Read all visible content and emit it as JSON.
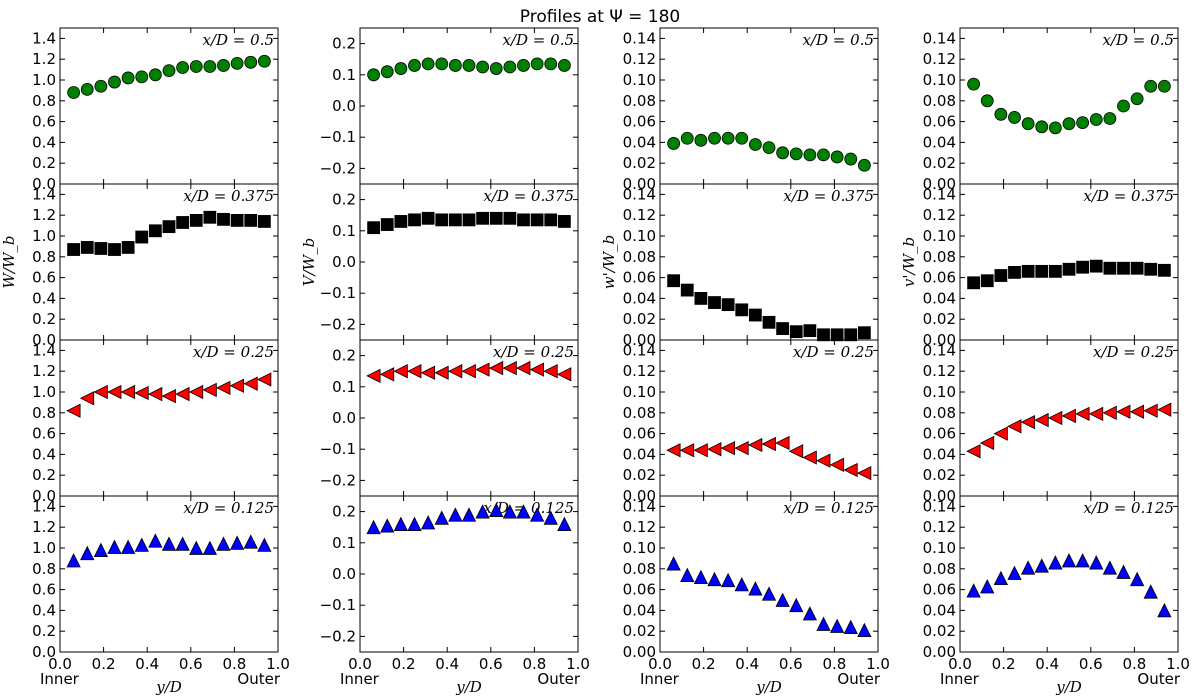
{
  "title": "Profiles at Ψ = 180",
  "chart_data": {
    "type": "scatter",
    "title": "Profiles at Ψ = 180",
    "xlabel": "y/D",
    "xlim": [
      0,
      1
    ],
    "xticks": [
      "0.0",
      "0.2",
      "0.4",
      "0.6",
      "0.8",
      "1.0"
    ],
    "x_end_labels": [
      "Inner",
      "Outer"
    ],
    "x": [
      0.0625,
      0.125,
      0.1875,
      0.25,
      0.3125,
      0.375,
      0.4375,
      0.5,
      0.5625,
      0.625,
      0.6875,
      0.75,
      0.8125,
      0.875,
      0.9375
    ],
    "row_labels": [
      "x/D = 0.5",
      "x/D = 0.375",
      "x/D = 0.25",
      "x/D = 0.125"
    ],
    "row_markers": [
      "circle",
      "square",
      "triangle-left",
      "triangle-up"
    ],
    "row_colors": [
      "#008000",
      "#000000",
      "#ff0000",
      "#0000ff"
    ],
    "columns": [
      {
        "ylabel": "W/W_b",
        "ylim": [
          0,
          1.5
        ],
        "yticks": [
          "0.0",
          "0.2",
          "0.4",
          "0.6",
          "0.8",
          "1.0",
          "1.2",
          "1.4"
        ],
        "rows": [
          [
            0.88,
            0.91,
            0.94,
            0.98,
            1.02,
            1.03,
            1.05,
            1.09,
            1.12,
            1.13,
            1.13,
            1.14,
            1.16,
            1.17,
            1.18
          ],
          [
            0.87,
            0.89,
            0.88,
            0.87,
            0.89,
            0.99,
            1.05,
            1.09,
            1.13,
            1.15,
            1.18,
            1.16,
            1.15,
            1.15,
            1.14
          ],
          [
            0.82,
            0.94,
            1.0,
            1.0,
            1.0,
            0.99,
            0.98,
            0.96,
            0.98,
            1.0,
            1.02,
            1.04,
            1.06,
            1.08,
            1.12
          ],
          [
            0.88,
            0.95,
            0.98,
            1.01,
            1.01,
            1.03,
            1.07,
            1.04,
            1.04,
            1.0,
            1.0,
            1.04,
            1.05,
            1.06,
            1.03
          ]
        ]
      },
      {
        "ylabel": "V/W_b",
        "ylim": [
          -0.25,
          0.25
        ],
        "yticks": [
          "−0.2",
          "−0.1",
          "0.0",
          "0.1",
          "0.2"
        ],
        "rows": [
          [
            0.1,
            0.11,
            0.12,
            0.13,
            0.135,
            0.135,
            0.13,
            0.13,
            0.125,
            0.12,
            0.125,
            0.13,
            0.135,
            0.135,
            0.13
          ],
          [
            0.11,
            0.12,
            0.13,
            0.135,
            0.14,
            0.135,
            0.135,
            0.135,
            0.14,
            0.14,
            0.14,
            0.135,
            0.135,
            0.135,
            0.13
          ],
          [
            0.135,
            0.14,
            0.15,
            0.15,
            0.145,
            0.145,
            0.15,
            0.15,
            0.155,
            0.16,
            0.16,
            0.16,
            0.155,
            0.15,
            0.14
          ],
          [
            0.15,
            0.155,
            0.16,
            0.16,
            0.165,
            0.18,
            0.19,
            0.19,
            0.2,
            0.205,
            0.2,
            0.2,
            0.19,
            0.18,
            0.16
          ]
        ]
      },
      {
        "ylabel": "w'/W_b",
        "ylim": [
          0,
          0.15
        ],
        "yticks": [
          "0.00",
          "0.02",
          "0.04",
          "0.06",
          "0.08",
          "0.10",
          "0.12",
          "0.14"
        ],
        "rows": [
          [
            0.039,
            0.044,
            0.042,
            0.044,
            0.044,
            0.044,
            0.038,
            0.035,
            0.03,
            0.029,
            0.028,
            0.028,
            0.026,
            0.024,
            0.018
          ],
          [
            0.057,
            0.048,
            0.04,
            0.036,
            0.034,
            0.029,
            0.024,
            0.017,
            0.011,
            0.008,
            0.009,
            0.005,
            0.005,
            0.005,
            0.007
          ],
          [
            0.044,
            0.044,
            0.044,
            0.045,
            0.046,
            0.046,
            0.049,
            0.05,
            0.051,
            0.043,
            0.037,
            0.034,
            0.03,
            0.025,
            0.022
          ],
          [
            0.085,
            0.074,
            0.072,
            0.07,
            0.069,
            0.065,
            0.061,
            0.056,
            0.05,
            0.045,
            0.037,
            0.027,
            0.025,
            0.024,
            0.021
          ]
        ]
      },
      {
        "ylabel": "v'/W_b",
        "ylim": [
          0,
          0.15
        ],
        "yticks": [
          "0.00",
          "0.02",
          "0.04",
          "0.06",
          "0.08",
          "0.10",
          "0.12",
          "0.14"
        ],
        "rows": [
          [
            0.096,
            0.08,
            0.067,
            0.064,
            0.058,
            0.055,
            0.054,
            0.058,
            0.059,
            0.062,
            0.063,
            0.075,
            0.082,
            0.094,
            0.094
          ],
          [
            0.055,
            0.057,
            0.062,
            0.065,
            0.066,
            0.066,
            0.066,
            0.068,
            0.07,
            0.071,
            0.069,
            0.069,
            0.069,
            0.068,
            0.067
          ],
          [
            0.043,
            0.051,
            0.06,
            0.067,
            0.071,
            0.073,
            0.075,
            0.077,
            0.079,
            0.079,
            0.08,
            0.081,
            0.081,
            0.082,
            0.083
          ],
          [
            0.059,
            0.063,
            0.071,
            0.076,
            0.081,
            0.083,
            0.086,
            0.088,
            0.088,
            0.086,
            0.081,
            0.077,
            0.07,
            0.058,
            0.04
          ]
        ]
      }
    ]
  }
}
